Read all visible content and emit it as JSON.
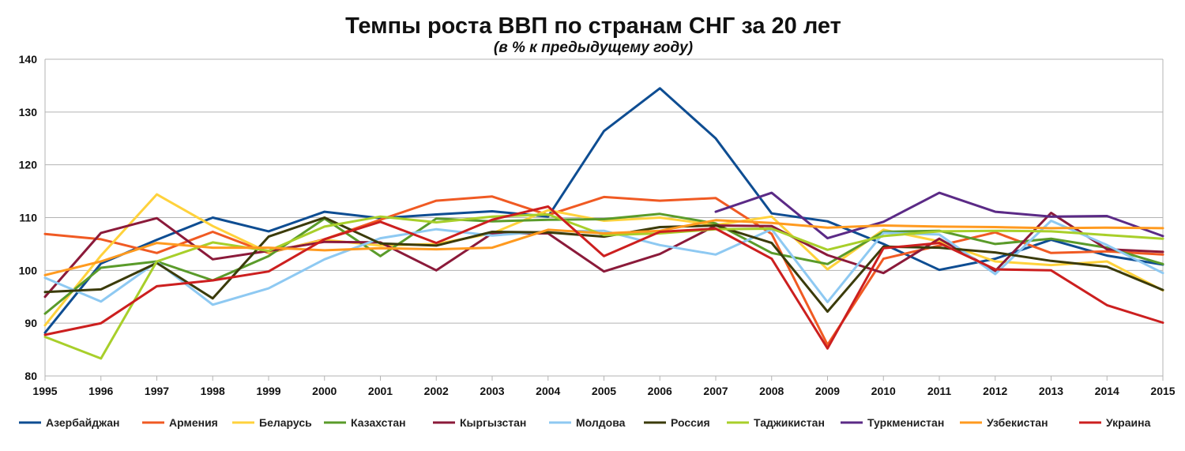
{
  "chart_data": {
    "type": "line",
    "title": "Темпы роста ВВП по странам СНГ за 20 лет",
    "subtitle": "(в % к предыдущему году)",
    "ylim": [
      80,
      140
    ],
    "y_ticks": [
      "80",
      "90",
      "100",
      "110",
      "120",
      "130",
      "140"
    ],
    "x": [
      "1995",
      "1996",
      "1997",
      "1998",
      "1999",
      "2000",
      "2001",
      "2002",
      "2003",
      "2004",
      "2005",
      "2006",
      "2007",
      "2008",
      "2009",
      "2010",
      "2011",
      "2012",
      "2013",
      "2014",
      "2015"
    ],
    "grid": true,
    "legend_position": "bottom",
    "series": [
      {
        "name": "Азербайджан",
        "color": "#0e4d92",
        "values": [
          88.2,
          101.3,
          105.8,
          110.0,
          107.4,
          111.1,
          109.9,
          110.6,
          111.2,
          110.2,
          126.4,
          134.5,
          125.0,
          110.8,
          109.3,
          105.0,
          100.1,
          102.2,
          105.8,
          102.8,
          101.1
        ]
      },
      {
        "name": "Армения",
        "color": "#f05a23",
        "values": [
          106.9,
          105.9,
          103.3,
          107.3,
          103.3,
          105.9,
          109.6,
          113.2,
          114.0,
          110.5,
          113.9,
          113.2,
          113.7,
          106.9,
          85.9,
          102.2,
          104.7,
          107.2,
          103.3,
          103.6,
          103.0
        ]
      },
      {
        "name": "Беларусь",
        "color": "#ffd23c",
        "values": [
          89.6,
          102.8,
          114.4,
          108.4,
          103.4,
          105.8,
          104.7,
          105.0,
          107.0,
          111.4,
          109.4,
          110.0,
          108.6,
          110.2,
          100.2,
          107.7,
          105.5,
          101.7,
          101.0,
          101.7,
          96.2
        ]
      },
      {
        "name": "Казахстан",
        "color": "#5a9b2a",
        "values": [
          91.8,
          100.5,
          101.7,
          98.1,
          102.7,
          109.8,
          102.7,
          109.8,
          109.3,
          109.6,
          109.7,
          110.7,
          108.9,
          103.3,
          101.2,
          107.3,
          107.5,
          105.0,
          106.0,
          104.3,
          101.2
        ]
      },
      {
        "name": "Кыргызстан",
        "color": "#8b1a3a",
        "values": [
          95.0,
          107.1,
          109.9,
          102.1,
          103.7,
          105.4,
          105.3,
          100.0,
          107.0,
          107.0,
          99.8,
          103.1,
          108.5,
          108.4,
          102.9,
          99.5,
          106.0,
          99.9,
          110.9,
          104.0,
          103.5
        ]
      },
      {
        "name": "Молдова",
        "color": "#8ec9f2",
        "values": [
          98.6,
          94.1,
          101.6,
          93.5,
          96.6,
          102.1,
          106.1,
          107.8,
          106.6,
          107.4,
          107.5,
          104.8,
          103.0,
          107.8,
          94.0,
          107.1,
          106.8,
          99.3,
          109.4,
          104.8,
          99.5
        ]
      },
      {
        "name": "Россия",
        "color": "#3b3b0a",
        "values": [
          95.9,
          96.4,
          101.4,
          94.7,
          106.4,
          110.0,
          105.1,
          104.7,
          107.3,
          107.2,
          106.4,
          108.2,
          108.5,
          105.2,
          92.2,
          104.5,
          104.3,
          103.4,
          101.8,
          100.7,
          96.3
        ]
      },
      {
        "name": "Таджикистан",
        "color": "#a8cf2a",
        "values": [
          87.4,
          83.3,
          101.7,
          105.3,
          103.7,
          108.3,
          110.2,
          109.1,
          110.2,
          110.6,
          106.7,
          107.0,
          107.8,
          107.9,
          103.9,
          106.5,
          107.4,
          107.5,
          107.4,
          106.7,
          106.0
        ]
      },
      {
        "name": "Туркменистан",
        "color": "#5b2a86",
        "values": [
          null,
          null,
          null,
          null,
          null,
          null,
          null,
          null,
          null,
          null,
          null,
          null,
          111.1,
          114.7,
          106.1,
          109.2,
          114.7,
          111.1,
          110.2,
          110.3,
          106.5
        ]
      },
      {
        "name": "Узбекистан",
        "color": "#ff9a1f",
        "values": [
          99.1,
          101.7,
          105.2,
          104.3,
          104.3,
          103.8,
          104.2,
          104.0,
          104.3,
          107.7,
          107.0,
          107.5,
          109.5,
          109.0,
          108.1,
          108.5,
          108.3,
          108.2,
          108.0,
          108.1,
          108.0
        ]
      },
      {
        "name": "Украина",
        "color": "#cc1f1f",
        "values": [
          87.8,
          90.0,
          97.0,
          98.1,
          99.8,
          105.9,
          109.2,
          105.2,
          109.6,
          112.1,
          102.7,
          107.3,
          107.9,
          102.2,
          85.2,
          104.2,
          105.2,
          100.2,
          100.0,
          93.4,
          90.1
        ]
      }
    ]
  }
}
